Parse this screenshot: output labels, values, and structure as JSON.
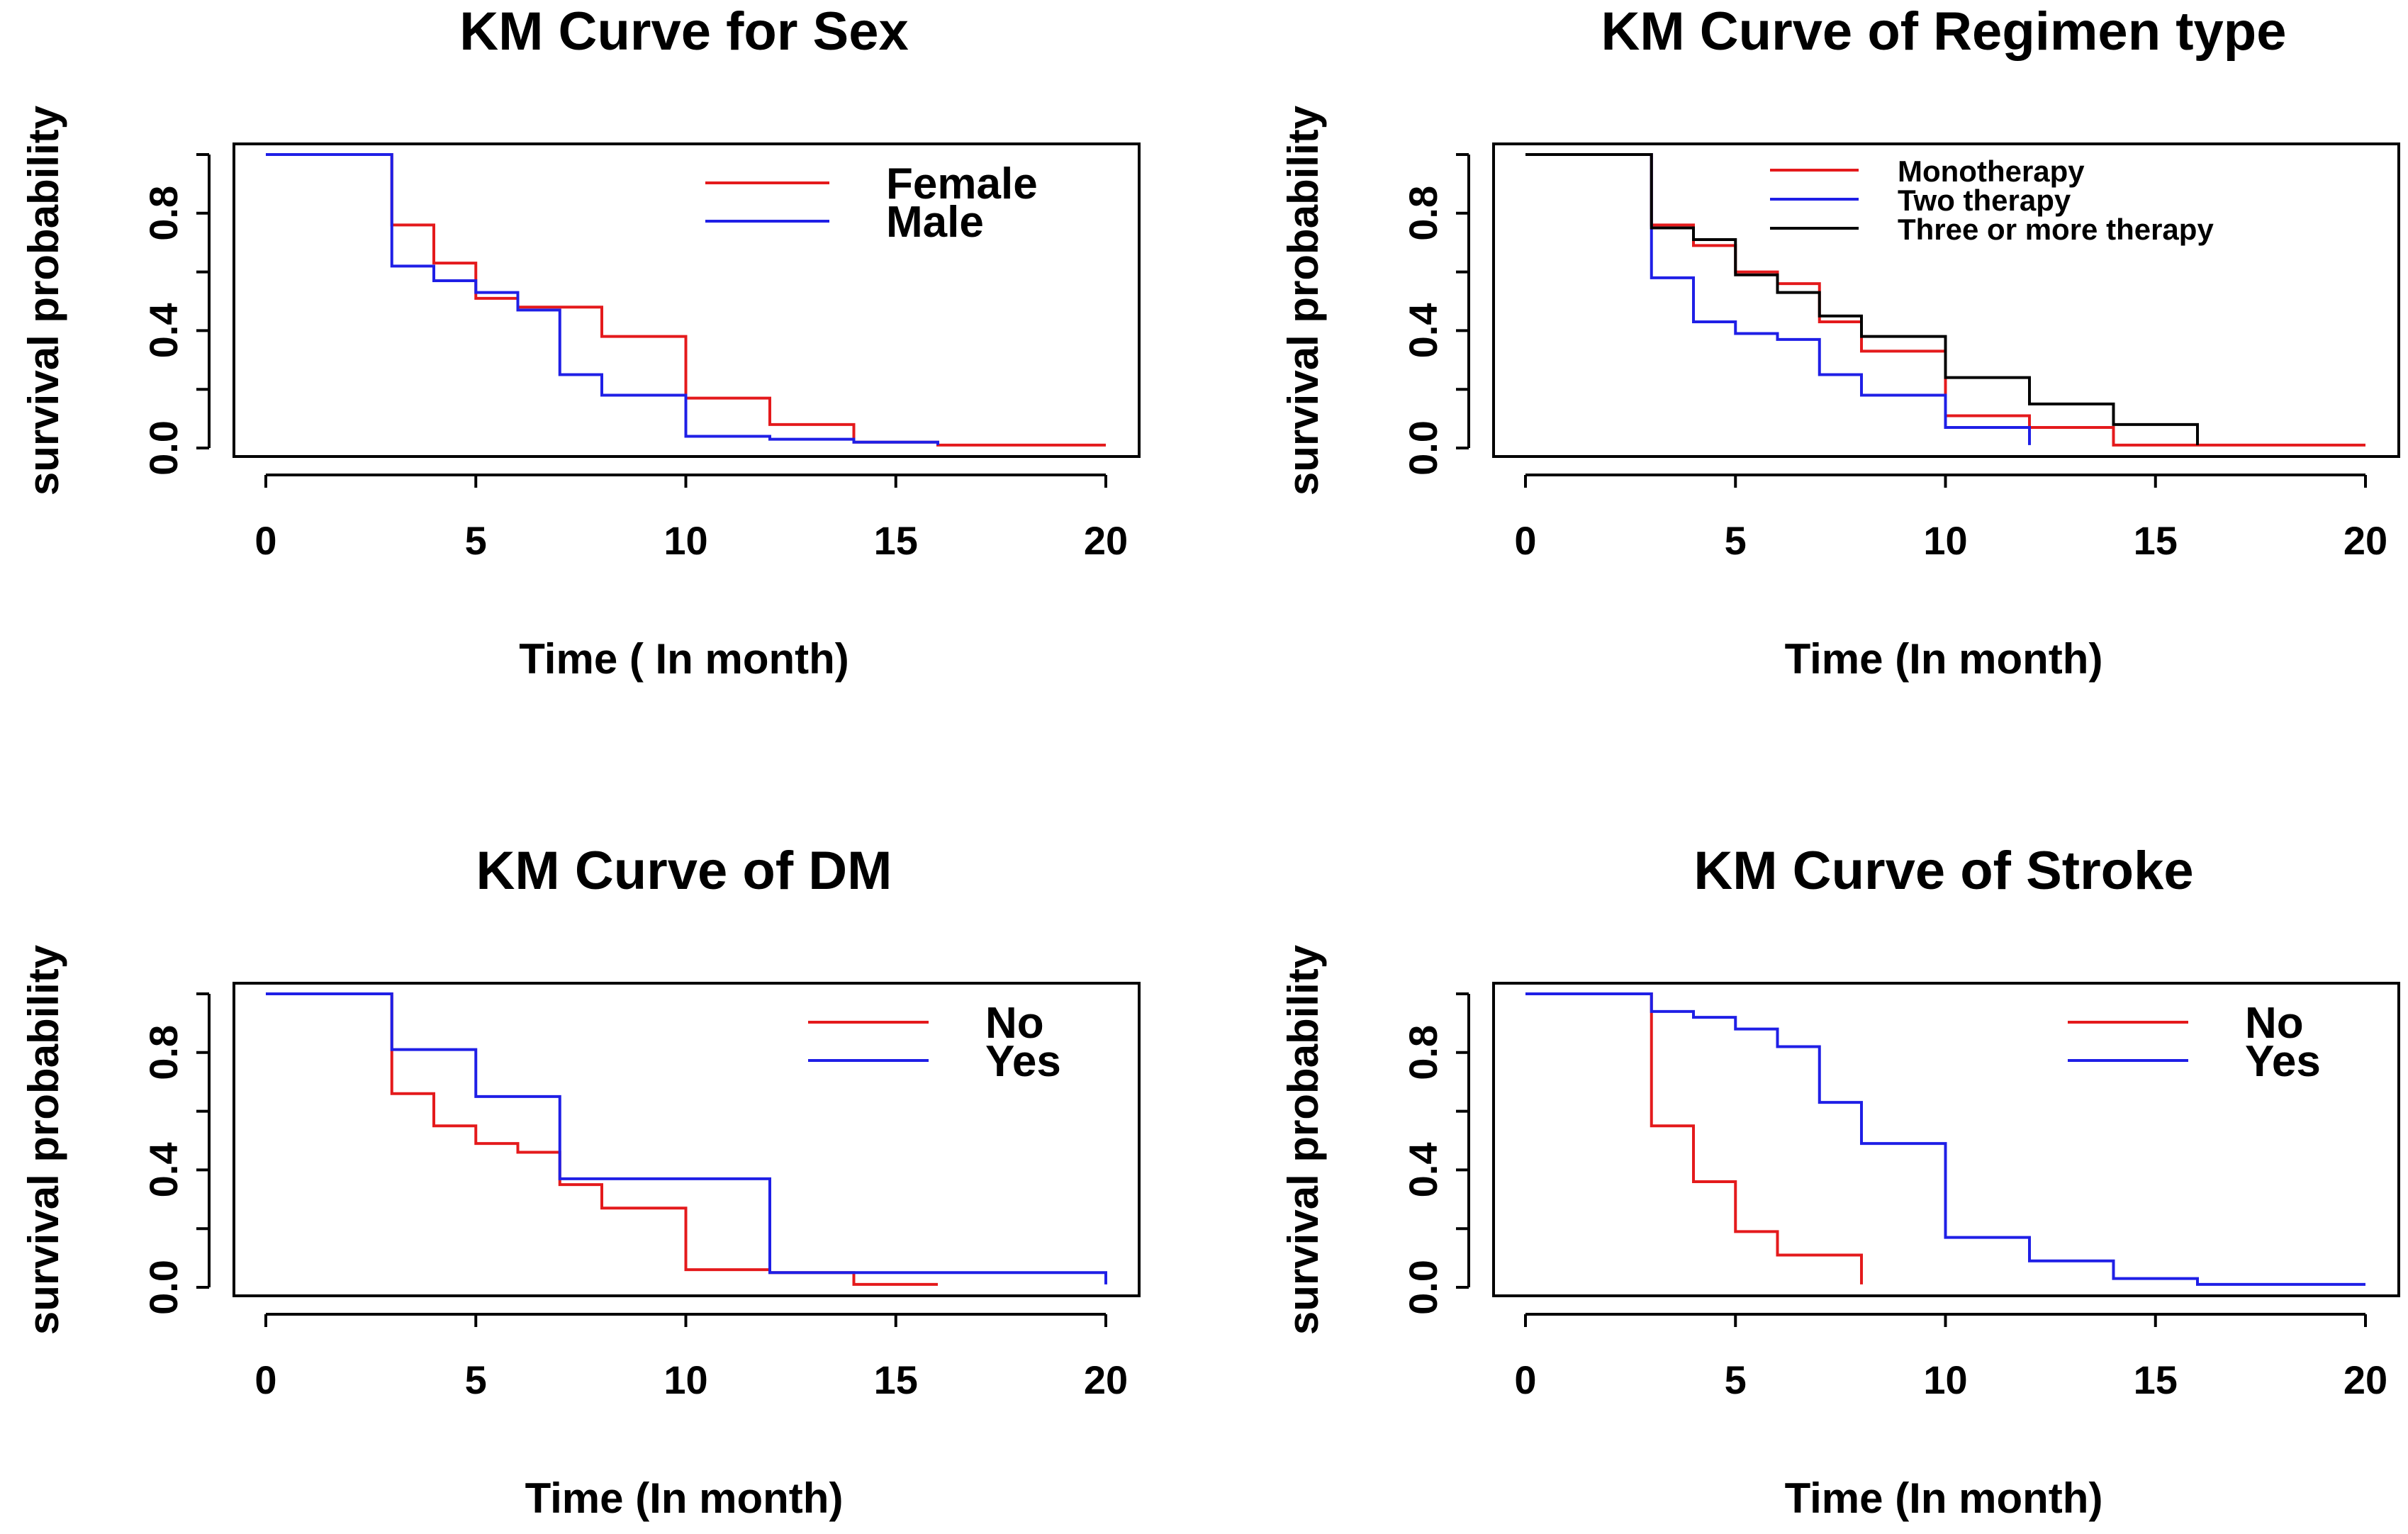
{
  "chart_data": [
    {
      "type": "line",
      "title": "KM Curve for Sex",
      "xlabel": "Time ( In month)",
      "ylabel": "survival probability",
      "xlim": [
        0,
        20
      ],
      "ylim": [
        0,
        1
      ],
      "xticks": [
        "0",
        "5",
        "10",
        "15",
        "20"
      ],
      "yticks": [
        "0.0",
        "0.4",
        "0.8"
      ],
      "legend_position": "top-right",
      "series": [
        {
          "name": "Female",
          "color": "#e41a1c",
          "x": [
            0,
            3,
            4,
            5,
            6,
            7,
            8,
            10,
            12,
            14,
            16,
            20
          ],
          "y": [
            1.0,
            0.76,
            0.63,
            0.51,
            0.48,
            0.48,
            0.38,
            0.17,
            0.08,
            0.02,
            0.01,
            0.01
          ]
        },
        {
          "name": "Male",
          "color": "#1f1fe6",
          "x": [
            0,
            3,
            4,
            5,
            6,
            7,
            8,
            10,
            12,
            14,
            16
          ],
          "y": [
            1.0,
            0.62,
            0.57,
            0.53,
            0.47,
            0.25,
            0.18,
            0.04,
            0.03,
            0.02,
            0.01
          ]
        }
      ]
    },
    {
      "type": "line",
      "title": "KM Curve of Regimen type",
      "xlabel": "Time (In month)",
      "ylabel": "survival probability",
      "xlim": [
        0,
        20
      ],
      "ylim": [
        0,
        1
      ],
      "xticks": [
        "0",
        "5",
        "10",
        "15",
        "20"
      ],
      "yticks": [
        "0.0",
        "0.4",
        "0.8"
      ],
      "legend_position": "top",
      "series": [
        {
          "name": "Monotherapy",
          "color": "#e41a1c",
          "x": [
            0,
            3,
            4,
            5,
            6,
            7,
            8,
            10,
            12,
            14,
            20
          ],
          "y": [
            1.0,
            0.76,
            0.69,
            0.6,
            0.56,
            0.43,
            0.33,
            0.11,
            0.07,
            0.01,
            0.01
          ]
        },
        {
          "name": "Two therapy",
          "color": "#1f1fe6",
          "x": [
            0,
            3,
            4,
            5,
            6,
            7,
            8,
            10,
            12
          ],
          "y": [
            1.0,
            0.58,
            0.43,
            0.39,
            0.37,
            0.25,
            0.18,
            0.07,
            0.01
          ]
        },
        {
          "name": "Three or more therapy",
          "color": "#000000",
          "x": [
            0,
            3,
            4,
            5,
            6,
            7,
            8,
            10,
            12,
            14,
            16
          ],
          "y": [
            1.0,
            0.75,
            0.71,
            0.59,
            0.53,
            0.45,
            0.38,
            0.24,
            0.15,
            0.08,
            0.01
          ]
        }
      ]
    },
    {
      "type": "line",
      "title": "KM Curve of DM",
      "xlabel": "Time (In month)",
      "ylabel": "survival probability",
      "xlim": [
        0,
        20
      ],
      "ylim": [
        0,
        1
      ],
      "xticks": [
        "0",
        "5",
        "10",
        "15",
        "20"
      ],
      "yticks": [
        "0.0",
        "0.4",
        "0.8"
      ],
      "legend_position": "top-right",
      "series": [
        {
          "name": "No",
          "color": "#e41a1c",
          "x": [
            0,
            3,
            4,
            5,
            6,
            7,
            8,
            10,
            12,
            14,
            16
          ],
          "y": [
            1.0,
            0.66,
            0.55,
            0.49,
            0.46,
            0.35,
            0.27,
            0.06,
            0.05,
            0.01,
            0.01
          ]
        },
        {
          "name": "Yes",
          "color": "#1f1fe6",
          "x": [
            0,
            3,
            5,
            7,
            12,
            20
          ],
          "y": [
            1.0,
            0.81,
            0.65,
            0.37,
            0.05,
            0.01
          ]
        }
      ]
    },
    {
      "type": "line",
      "title": "KM Curve of Stroke",
      "xlabel": "Time (In month)",
      "ylabel": "survival probability",
      "xlim": [
        0,
        20
      ],
      "ylim": [
        0,
        1
      ],
      "xticks": [
        "0",
        "5",
        "10",
        "15",
        "20"
      ],
      "yticks": [
        "0.0",
        "0.4",
        "0.8"
      ],
      "legend_position": "top-right",
      "series": [
        {
          "name": "No",
          "color": "#e41a1c",
          "x": [
            0,
            3,
            4,
            5,
            6,
            8
          ],
          "y": [
            1.0,
            0.55,
            0.36,
            0.19,
            0.11,
            0.01
          ]
        },
        {
          "name": "Yes",
          "color": "#1f1fe6",
          "x": [
            0,
            3,
            4,
            5,
            6,
            7,
            8,
            10,
            12,
            14,
            16,
            20
          ],
          "y": [
            1.0,
            0.94,
            0.92,
            0.88,
            0.82,
            0.63,
            0.49,
            0.17,
            0.09,
            0.03,
            0.01,
            0.01
          ]
        }
      ]
    }
  ]
}
